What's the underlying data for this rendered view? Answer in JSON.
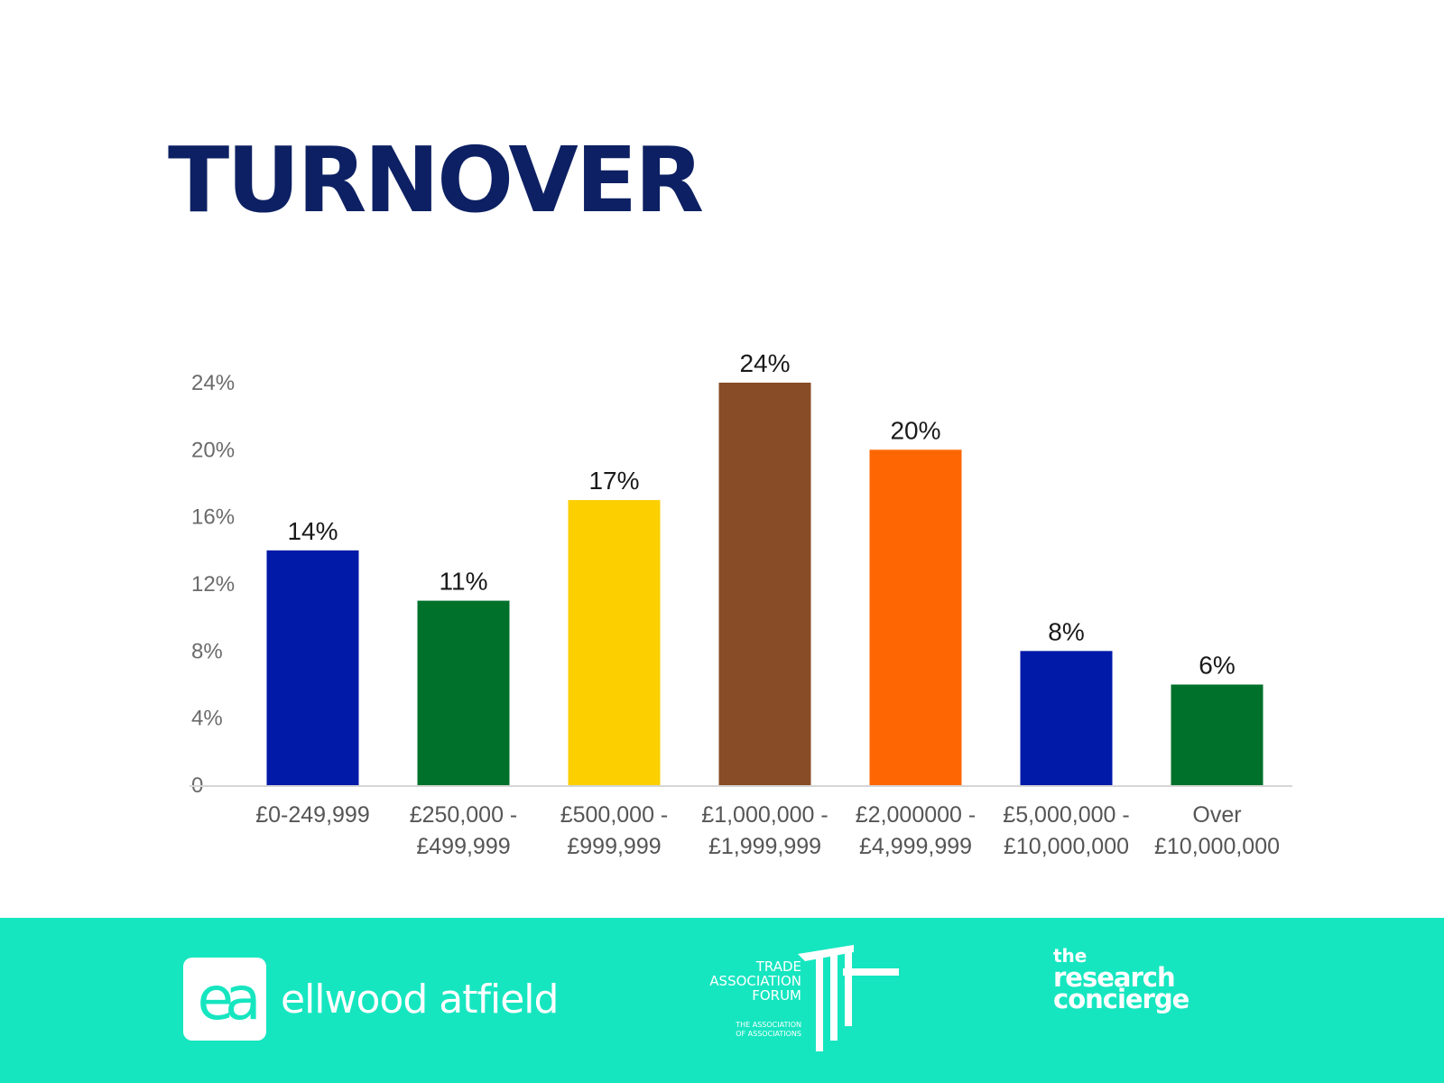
{
  "title": "TURNOVER",
  "chart_data": {
    "type": "bar",
    "title": "TURNOVER",
    "categories": [
      [
        "£0-249,999"
      ],
      [
        "£250,000 -",
        "£499,999"
      ],
      [
        "£500,000 -",
        "£999,999"
      ],
      [
        "£1,000,000 -",
        "£1,999,999"
      ],
      [
        "£2,000000 -",
        "£4,999,999"
      ],
      [
        "£5,000,000 -",
        "£10,000,000"
      ],
      [
        "Over",
        "£10,000,000"
      ]
    ],
    "values": [
      14,
      11,
      17,
      24,
      20,
      8,
      6
    ],
    "data_labels": [
      "14%",
      "11%",
      "17%",
      "24%",
      "20%",
      "8%",
      "6%"
    ],
    "colors": [
      "#011aa8",
      "#00712b",
      "#fccf01",
      "#884d27",
      "#fe6603",
      "#011aa8",
      "#00712b"
    ],
    "yticks": [
      0,
      4,
      8,
      12,
      16,
      20,
      24
    ],
    "ytick_labels": [
      "0",
      "4%",
      "8%",
      "12%",
      "16%",
      "20%",
      "24%"
    ],
    "ylim": [
      0,
      24
    ],
    "xlabel": "",
    "ylabel": "",
    "grid": false
  },
  "footer": {
    "background": "#16e6c0",
    "ellwood_mark": "ea",
    "ellwood_name": "ellwood atfield",
    "taf_lines": [
      "TRADE",
      "ASSOCIATION",
      "FORUM"
    ],
    "taf_sub_lines": [
      "THE ASSOCIATION",
      "OF ASSOCIATIONS"
    ],
    "rc_the": "the",
    "rc_line1": "research",
    "rc_line2": "concierge"
  }
}
